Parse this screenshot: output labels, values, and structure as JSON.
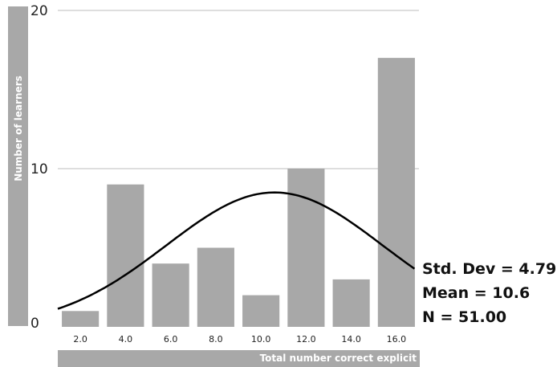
{
  "chart_data": {
    "type": "bar",
    "title": "",
    "xlabel": "Total number correct explicit",
    "ylabel": "Number of learners",
    "categories": [
      "2.0",
      "4.0",
      "6.0",
      "8.0",
      "10.0",
      "12.0",
      "14.0",
      "16.0"
    ],
    "values": [
      1,
      9,
      4,
      5,
      2,
      10,
      3,
      17
    ],
    "ylim": [
      0,
      20
    ],
    "yticks": [
      "0",
      "10",
      "20"
    ],
    "grid": true,
    "bar_color": "#a8a8a8",
    "curve": {
      "type": "normal",
      "mean": 10.6,
      "std": 4.79,
      "n": 51
    },
    "stats": {
      "std_dev": "Std. Dev = 4.79",
      "mean": "Mean = 10.6",
      "n": "N = 51.00"
    }
  }
}
